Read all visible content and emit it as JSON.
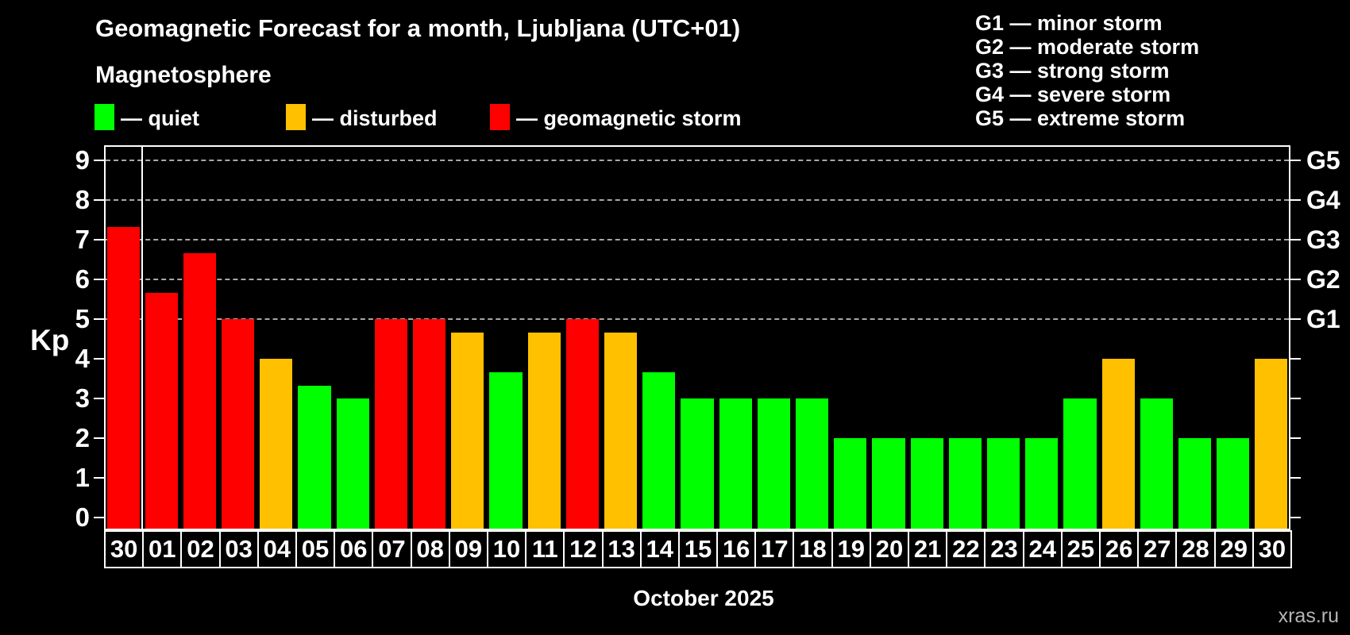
{
  "header": {
    "title": "Geomagnetic Forecast for a month, Ljubljana (UTC+01)",
    "subtitle": "Magnetosphere"
  },
  "legend": {
    "items": [
      {
        "status": "quiet",
        "label": "— quiet",
        "color": "#00ff00"
      },
      {
        "status": "disturbed",
        "label": "— disturbed",
        "color": "#ffc000"
      },
      {
        "status": "storm",
        "label": "— geomagnetic storm",
        "color": "#ff0000"
      }
    ]
  },
  "gscale_legend": {
    "items": [
      "G1 — minor storm",
      "G2 — moderate storm",
      "G3 — strong storm",
      "G4 — severe storm",
      "G5 — extreme storm"
    ]
  },
  "axes": {
    "y_title": "Kp",
    "y_ticks": [
      0,
      1,
      2,
      3,
      4,
      5,
      6,
      7,
      8,
      9
    ],
    "g_labels": [
      {
        "kp": 5,
        "label": "G1"
      },
      {
        "kp": 6,
        "label": "G2"
      },
      {
        "kp": 7,
        "label": "G3"
      },
      {
        "kp": 8,
        "label": "G4"
      },
      {
        "kp": 9,
        "label": "G5"
      }
    ],
    "x_title": "October 2025"
  },
  "watermark": "xras.ru",
  "chart_data": {
    "type": "bar",
    "title": "Geomagnetic Forecast for a month, Ljubljana (UTC+01)",
    "xlabel": "October 2025",
    "ylabel": "Kp",
    "ylim": [
      0,
      9.5
    ],
    "grid": "dashed horizontal at Kp 5-9 only",
    "legend_position": "top-left",
    "categories": [
      "30",
      "01",
      "02",
      "03",
      "04",
      "05",
      "06",
      "07",
      "08",
      "09",
      "10",
      "11",
      "12",
      "13",
      "14",
      "15",
      "16",
      "17",
      "18",
      "19",
      "20",
      "21",
      "22",
      "23",
      "24",
      "25",
      "26",
      "27",
      "28",
      "29",
      "30"
    ],
    "values": [
      7.33,
      5.67,
      6.67,
      5,
      4,
      3.33,
      3,
      5,
      5,
      4.67,
      3.67,
      4.67,
      5,
      4.67,
      3.67,
      3,
      3,
      3,
      3,
      2,
      2,
      2,
      2,
      2,
      2,
      3,
      4,
      3,
      2,
      2,
      4
    ],
    "statuses": [
      "storm",
      "storm",
      "storm",
      "storm",
      "disturbed",
      "quiet",
      "quiet",
      "storm",
      "storm",
      "disturbed",
      "quiet",
      "disturbed",
      "storm",
      "disturbed",
      "quiet",
      "quiet",
      "quiet",
      "quiet",
      "quiet",
      "quiet",
      "quiet",
      "quiet",
      "quiet",
      "quiet",
      "quiet",
      "quiet",
      "disturbed",
      "quiet",
      "quiet",
      "quiet",
      "disturbed"
    ],
    "colors": {
      "quiet": "#00ff00",
      "disturbed": "#ffc000",
      "storm": "#ff0000"
    },
    "separator_after_index": 0
  }
}
